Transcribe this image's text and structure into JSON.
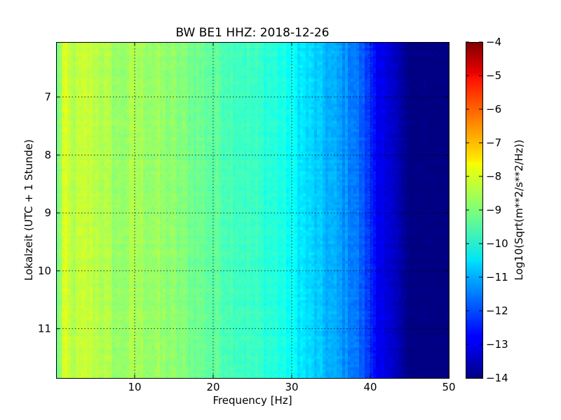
{
  "chart_data": {
    "type": "heatmap",
    "title": "BW BE1 HHZ: 2018-12-26",
    "xlabel": "Frequency [Hz]",
    "ylabel": "Lokalzeit (UTC + 1 Stunde)",
    "xlim": [
      0,
      50
    ],
    "ylim": [
      11.85,
      6.05
    ],
    "y_inverted": true,
    "xticks": [
      10,
      20,
      30,
      40,
      50
    ],
    "yticks": [
      7,
      8,
      9,
      10,
      11
    ],
    "grid": true,
    "colormap": "jet",
    "colorbar": {
      "label": "Log10(Sqrt(m**2/s**2/Hz))",
      "range": [
        -14,
        -4
      ],
      "ticks": [
        -4,
        -5,
        -6,
        -7,
        -8,
        -9,
        -10,
        -11,
        -12,
        -13,
        -14
      ]
    },
    "spectral_profile": {
      "frequency_hz": [
        0,
        1,
        2,
        4,
        6,
        8,
        10,
        15,
        20,
        25,
        28,
        30,
        32,
        34,
        36,
        38,
        40,
        41,
        42,
        43,
        44,
        45,
        50
      ],
      "log_amplitude": [
        -9.4,
        -8.1,
        -8.5,
        -8.3,
        -8.5,
        -8.8,
        -8.6,
        -8.9,
        -9.3,
        -9.7,
        -9.9,
        -10.2,
        -10.6,
        -10.9,
        -11.2,
        -11.5,
        -12.3,
        -12.8,
        -13.1,
        -13.3,
        -13.6,
        -14.0,
        -14.0
      ]
    },
    "horizontal_bands": [
      {
        "time": 7.3,
        "fmin": 0,
        "fmax": 44.5,
        "log_amplitude": -9.3
      },
      {
        "time": 7.6,
        "fmin": 0,
        "fmax": 44.5,
        "log_amplitude": -9.5
      },
      {
        "time": 10.0,
        "fmin": 0,
        "fmax": 45.5,
        "log_amplitude": -8.6
      },
      {
        "time": 11.25,
        "fmin": 0,
        "fmax": 44.5,
        "log_amplitude": -9.1
      },
      {
        "time": 11.65,
        "fmin": 0,
        "fmax": 45.5,
        "log_amplitude": -8.8
      }
    ]
  }
}
